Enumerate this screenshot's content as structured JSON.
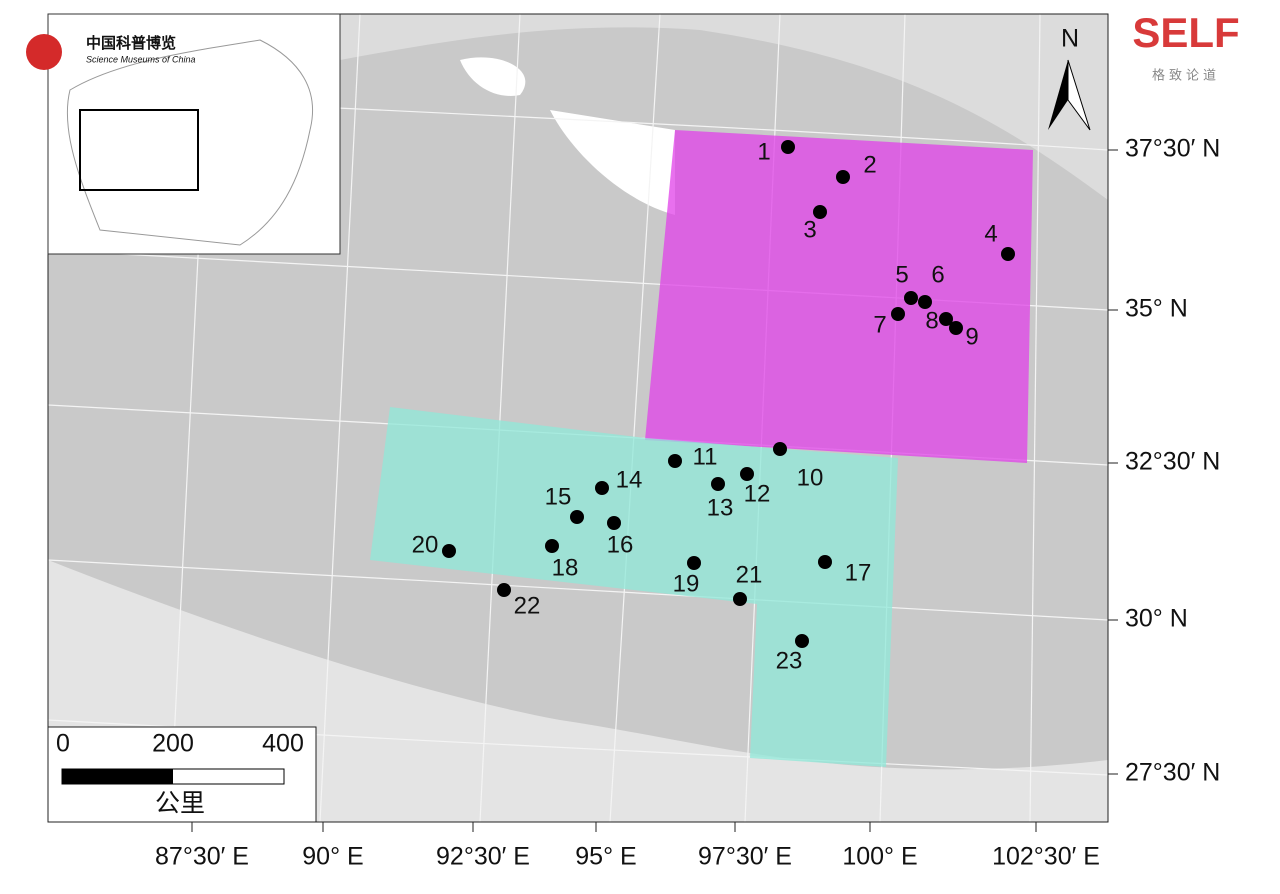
{
  "map": {
    "lat_labels": [
      "37°30′ N",
      "35° N",
      "32°30′ N",
      "30° N",
      "27°30′ N"
    ],
    "lon_labels": [
      "87°30′ E",
      "90° E",
      "92°30′ E",
      "95° E",
      "97°30′ E",
      "100° E",
      "102°30′ E"
    ],
    "sites": [
      "1",
      "2",
      "3",
      "4",
      "5",
      "6",
      "7",
      "8",
      "9",
      "10",
      "11",
      "12",
      "13",
      "14",
      "15",
      "16",
      "17",
      "18",
      "19",
      "20",
      "21",
      "22",
      "23"
    ],
    "north": "N",
    "scale": {
      "ticks": [
        0,
        200,
        400
      ],
      "unit": "公里"
    }
  },
  "logos": {
    "self": "SELF",
    "self_sub": "格致论道",
    "museum": "中国科普博览",
    "museum_en": "Science Museums of China"
  }
}
